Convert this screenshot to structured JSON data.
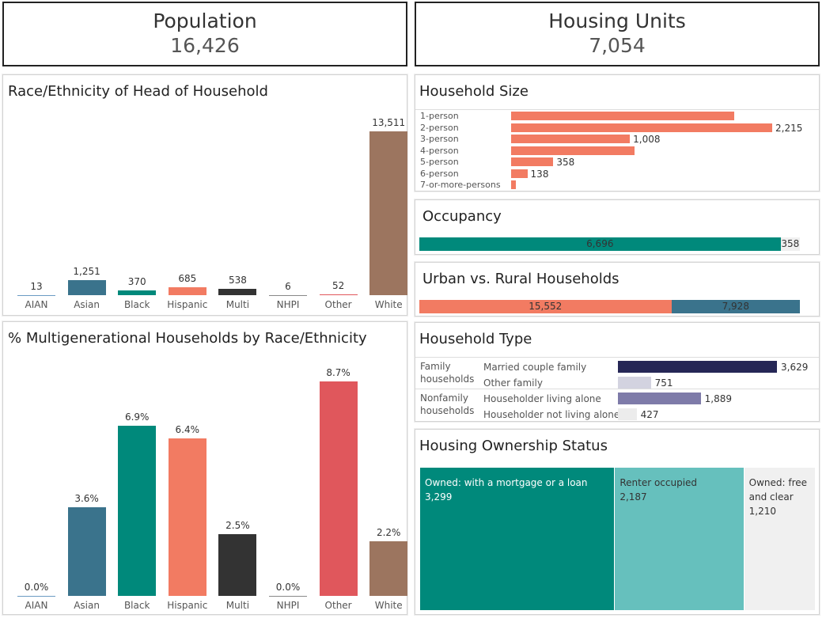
{
  "kpis": {
    "population": {
      "label": "Population",
      "value": "16,426"
    },
    "housing": {
      "label": "Housing Units",
      "value": "7,054"
    }
  },
  "race": {
    "title": "Race/Ethnicity of Head of Household",
    "chart_data": {
      "type": "bar",
      "categories": [
        "AIAN",
        "Asian",
        "Black",
        "Hispanic",
        "Multi",
        "NHPI",
        "Other",
        "White"
      ],
      "values": [
        13,
        1251,
        370,
        685,
        538,
        6,
        52,
        13511
      ],
      "labels": [
        "13",
        "1,251",
        "370",
        "685",
        "538",
        "6",
        "52",
        "13,511"
      ]
    }
  },
  "multigen": {
    "title": "% Multigenerational Households by Race/Ethnicity",
    "chart_data": {
      "type": "bar",
      "categories": [
        "AIAN",
        "Asian",
        "Black",
        "Hispanic",
        "Multi",
        "NHPI",
        "Other",
        "White"
      ],
      "values": [
        0.0,
        3.6,
        6.9,
        6.4,
        2.5,
        0.0,
        8.7,
        2.2
      ],
      "labels": [
        "0.0%",
        "3.6%",
        "6.9%",
        "6.4%",
        "2.5%",
        "0.0%",
        "8.7%",
        "2.2%"
      ]
    }
  },
  "colors": {
    "AIAN": "#6b9bc3",
    "Asian": "#3a738c",
    "Black": "#00897b",
    "Hispanic": "#f27b62",
    "Multi": "#333333",
    "NHPI": "#888888",
    "Other": "#e0575c",
    "White": "#9c755f"
  },
  "household_size": {
    "title": "Household Size",
    "color": "#f27b62",
    "chart_data": {
      "type": "bar",
      "categories": [
        "1-person",
        "2-person",
        "3-person",
        "4-person",
        "5-person",
        "6-person",
        "7-or-more-persons"
      ],
      "values": [
        1893,
        2215,
        1008,
        1044,
        358,
        138,
        40
      ],
      "labels": [
        "",
        "2,215",
        "1,008",
        "",
        "358",
        "138",
        ""
      ]
    }
  },
  "occupancy": {
    "title": "Occupancy",
    "chart_data": {
      "type": "bar",
      "values": [
        6696,
        358
      ],
      "labels": [
        "6,696",
        "358"
      ],
      "colors": [
        "#00897b",
        "#f0f0f0"
      ]
    }
  },
  "urban": {
    "title": "Urban vs. Rural Households",
    "chart_data": {
      "type": "bar",
      "values": [
        15552,
        7928
      ],
      "labels": [
        "15,552",
        "7,928"
      ],
      "colors": [
        "#f27b62",
        "#3a738c"
      ]
    }
  },
  "household_type": {
    "title": "Household Type",
    "groups": [
      {
        "label": "Family households",
        "rows": [
          {
            "label": "Married couple family",
            "value": 3629,
            "display": "3,629",
            "color": "#262756"
          },
          {
            "label": "Other family",
            "value": 751,
            "display": "751",
            "color": "#d3d3e0"
          }
        ]
      },
      {
        "label": "Nonfamily households",
        "rows": [
          {
            "label": "Householder living alone",
            "value": 1889,
            "display": "1,889",
            "color": "#7e7ba9"
          },
          {
            "label": "Householder not living alone",
            "value": 427,
            "display": "427",
            "color": "#ececec"
          }
        ]
      }
    ]
  },
  "ownership": {
    "title": "Housing Ownership Status",
    "chart_data": {
      "type": "treemap",
      "items": [
        {
          "label": "Owned: with a mortgage or a loan",
          "value": 3299,
          "display": "3,299",
          "color": "#00897b",
          "text": "#fff"
        },
        {
          "label": "Renter occupied",
          "value": 2187,
          "display": "2,187",
          "color": "#66c0bd",
          "text": "#333"
        },
        {
          "label": "Owned: free and clear",
          "value": 1210,
          "display": "1,210",
          "color": "#f0f0f0",
          "text": "#333"
        }
      ]
    }
  }
}
